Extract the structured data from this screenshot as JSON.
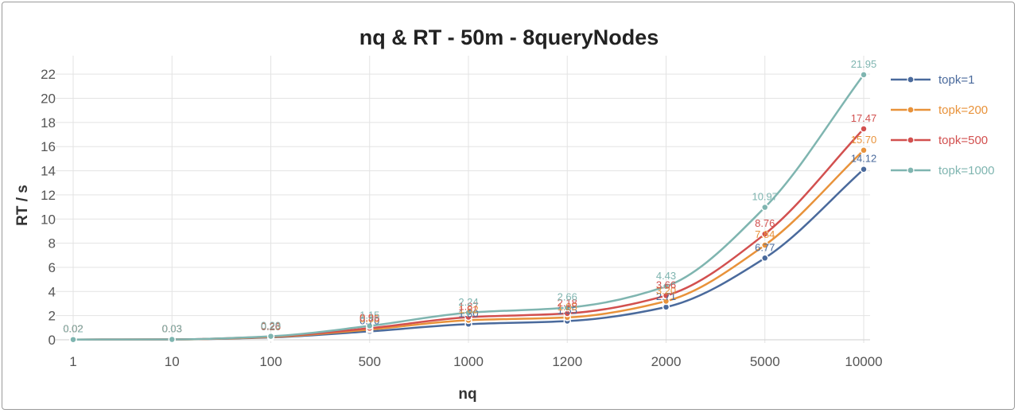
{
  "chart_data": {
    "type": "line",
    "title": "nq & RT - 50m - 8queryNodes",
    "xlabel": "nq",
    "ylabel": "RT / s",
    "categories": [
      "1",
      "10",
      "100",
      "500",
      "1000",
      "1200",
      "2000",
      "5000",
      "10000"
    ],
    "ylim": [
      0,
      23
    ],
    "yticks": [
      0,
      2,
      4,
      6,
      8,
      10,
      12,
      14,
      16,
      18,
      20,
      22
    ],
    "grid": true,
    "legend_position": "right",
    "series": [
      {
        "name": "topk=1",
        "color": "#4a6a9c",
        "values": [
          0.02,
          0.03,
          0.2,
          0.7,
          1.3,
          1.55,
          2.71,
          6.77,
          14.12
        ],
        "labels": [
          "0.02",
          "0.03",
          "0.20",
          "0.70",
          "1.30",
          "1.55",
          "2.71",
          "6.77",
          "14.12"
        ]
      },
      {
        "name": "topk=200",
        "color": "#e8923a",
        "values": [
          0.02,
          0.03,
          0.23,
          0.85,
          1.62,
          1.85,
          3.2,
          7.84,
          15.7
        ],
        "labels": [
          "0.02",
          "0.03",
          "0.23",
          "0.85",
          "1.62",
          "1.85",
          "3.20",
          "7.84",
          "15.70"
        ]
      },
      {
        "name": "topk=500",
        "color": "#d2504f",
        "values": [
          0.02,
          0.03,
          0.26,
          0.96,
          1.87,
          2.18,
          3.66,
          8.76,
          17.47
        ],
        "labels": [
          "0.02",
          "0.03",
          "0.26",
          "0.96",
          "1.87",
          "2.18",
          "3.66",
          "8.76",
          "17.47"
        ]
      },
      {
        "name": "topk=1000",
        "color": "#7fb5b0",
        "values": [
          0.02,
          0.03,
          0.29,
          1.15,
          2.24,
          2.66,
          4.43,
          10.97,
          21.95
        ],
        "labels": [
          "0.02",
          "0.03",
          "0.29",
          "1.15",
          "2.24",
          "2.66",
          "4.43",
          "10.97",
          "21.95"
        ]
      }
    ]
  }
}
